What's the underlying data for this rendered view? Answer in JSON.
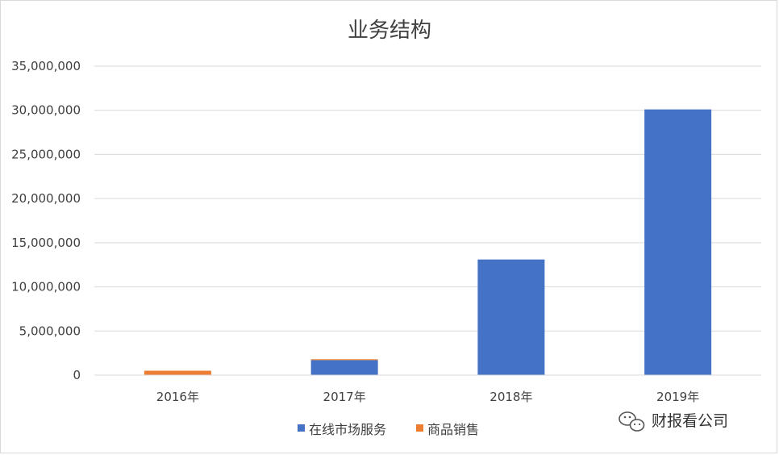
{
  "chart_data": {
    "type": "bar",
    "stacked": true,
    "title": "业务结构",
    "categories": [
      "2016年",
      "2017年",
      "2018年",
      "2019年"
    ],
    "series": [
      {
        "name": "在线市场服务",
        "color": "#4472C4",
        "values": [
          0,
          1700000,
          13100000,
          30100000
        ]
      },
      {
        "name": "商品销售",
        "color": "#ED7D31",
        "values": [
          500000,
          100000,
          0,
          0
        ]
      }
    ],
    "ylim": [
      0,
      35000000
    ],
    "yticks": [
      0,
      5000000,
      10000000,
      15000000,
      20000000,
      25000000,
      30000000,
      35000000
    ],
    "ytick_labels": [
      "0",
      "5,000,000",
      "10,000,000",
      "15,000,000",
      "20,000,000",
      "25,000,000",
      "30,000,000",
      "35,000,000"
    ],
    "grid": true,
    "legend_position": "bottom"
  },
  "watermark": {
    "text": "财报看公司",
    "icon": "wechat-icon"
  }
}
